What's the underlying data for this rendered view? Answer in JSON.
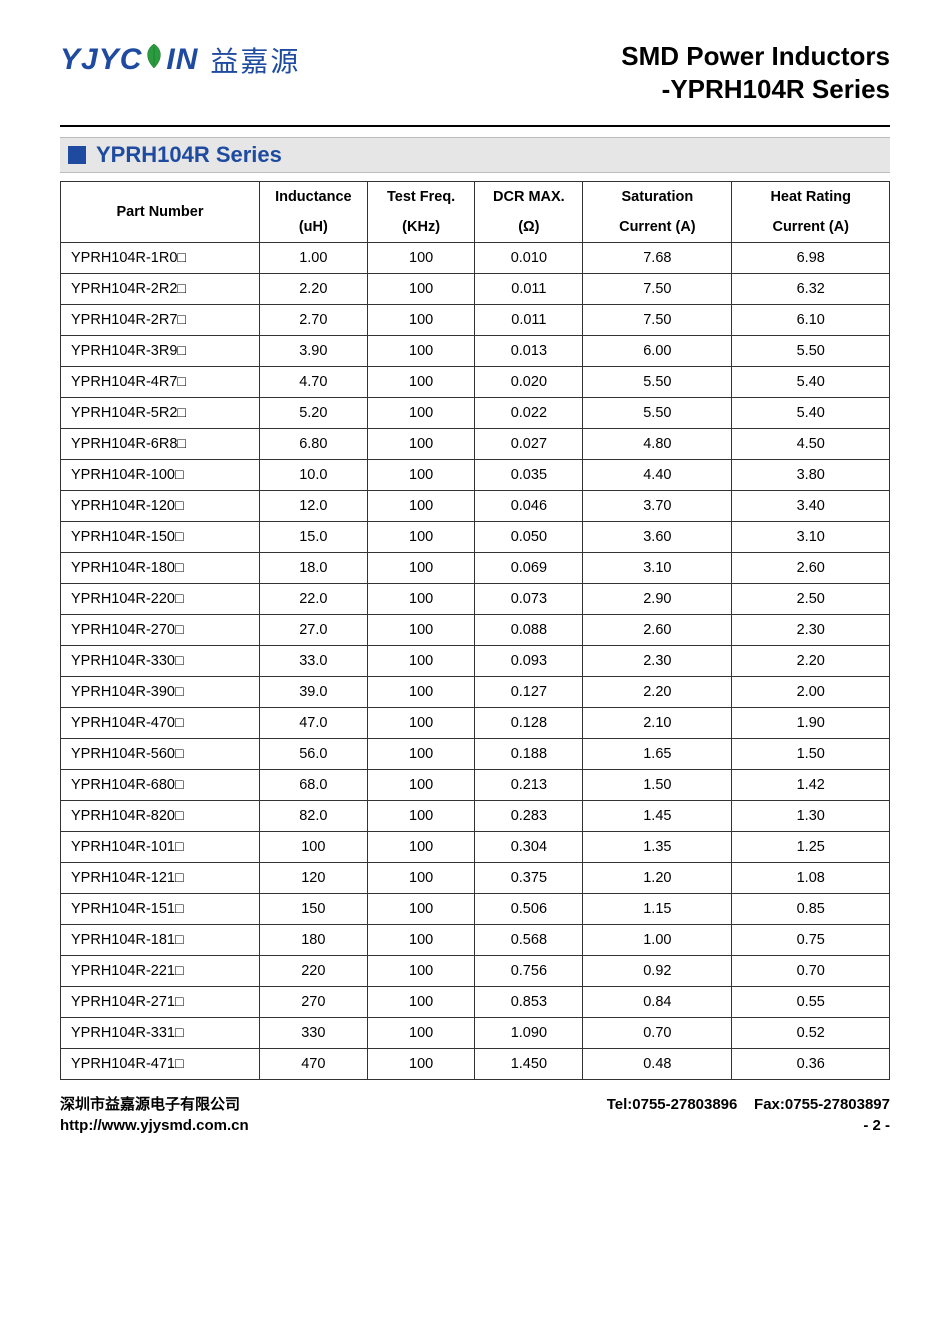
{
  "logo": {
    "latin": "YJYC",
    "latin2": "IN",
    "cn": "益嘉源"
  },
  "doc_title_line1": "SMD Power Inductors",
  "doc_title_line2": "-YPRH104R Series",
  "section_title": "YPRH104R Series",
  "table": {
    "headers_top": [
      "Part Number",
      "Inductance",
      "Test Freq.",
      "DCR MAX.",
      "Saturation",
      "Heat Rating"
    ],
    "headers_bot": [
      "",
      "(uH)",
      "(KHz)",
      "(Ω)",
      "Current (A)",
      "Current (A)"
    ],
    "col_widths": [
      "24%",
      "13%",
      "13%",
      "13%",
      "18%",
      "19%"
    ],
    "rows": [
      [
        "YPRH104R-1R0□",
        "1.00",
        "100",
        "0.010",
        "7.68",
        "6.98"
      ],
      [
        "YPRH104R-2R2□",
        "2.20",
        "100",
        "0.011",
        "7.50",
        "6.32"
      ],
      [
        "YPRH104R-2R7□",
        "2.70",
        "100",
        "0.011",
        "7.50",
        "6.10"
      ],
      [
        "YPRH104R-3R9□",
        "3.90",
        "100",
        "0.013",
        "6.00",
        "5.50"
      ],
      [
        "YPRH104R-4R7□",
        "4.70",
        "100",
        "0.020",
        "5.50",
        "5.40"
      ],
      [
        "YPRH104R-5R2□",
        "5.20",
        "100",
        "0.022",
        "5.50",
        "5.40"
      ],
      [
        "YPRH104R-6R8□",
        "6.80",
        "100",
        "0.027",
        "4.80",
        "4.50"
      ],
      [
        "YPRH104R-100□",
        "10.0",
        "100",
        "0.035",
        "4.40",
        "3.80"
      ],
      [
        "YPRH104R-120□",
        "12.0",
        "100",
        "0.046",
        "3.70",
        "3.40"
      ],
      [
        "YPRH104R-150□",
        "15.0",
        "100",
        "0.050",
        "3.60",
        "3.10"
      ],
      [
        "YPRH104R-180□",
        "18.0",
        "100",
        "0.069",
        "3.10",
        "2.60"
      ],
      [
        "YPRH104R-220□",
        "22.0",
        "100",
        "0.073",
        "2.90",
        "2.50"
      ],
      [
        "YPRH104R-270□",
        "27.0",
        "100",
        "0.088",
        "2.60",
        "2.30"
      ],
      [
        "YPRH104R-330□",
        "33.0",
        "100",
        "0.093",
        "2.30",
        "2.20"
      ],
      [
        "YPRH104R-390□",
        "39.0",
        "100",
        "0.127",
        "2.20",
        "2.00"
      ],
      [
        "YPRH104R-470□",
        "47.0",
        "100",
        "0.128",
        "2.10",
        "1.90"
      ],
      [
        "YPRH104R-560□",
        "56.0",
        "100",
        "0.188",
        "1.65",
        "1.50"
      ],
      [
        "YPRH104R-680□",
        "68.0",
        "100",
        "0.213",
        "1.50",
        "1.42"
      ],
      [
        "YPRH104R-820□",
        "82.0",
        "100",
        "0.283",
        "1.45",
        "1.30"
      ],
      [
        "YPRH104R-101□",
        "100",
        "100",
        "0.304",
        "1.35",
        "1.25"
      ],
      [
        "YPRH104R-121□",
        "120",
        "100",
        "0.375",
        "1.20",
        "1.08"
      ],
      [
        "YPRH104R-151□",
        "150",
        "100",
        "0.506",
        "1.15",
        "0.85"
      ],
      [
        "YPRH104R-181□",
        "180",
        "100",
        "0.568",
        "1.00",
        "0.75"
      ],
      [
        "YPRH104R-221□",
        "220",
        "100",
        "0.756",
        "0.92",
        "0.70"
      ],
      [
        "YPRH104R-271□",
        "270",
        "100",
        "0.853",
        "0.84",
        "0.55"
      ],
      [
        "YPRH104R-331□",
        "330",
        "100",
        "1.090",
        "0.70",
        "0.52"
      ],
      [
        "YPRH104R-471□",
        "470",
        "100",
        "1.450",
        "0.48",
        "0.36"
      ]
    ]
  },
  "footer": {
    "company_cn": "深圳市益嘉源电子有限公司",
    "tel_label": "Tel:",
    "tel": "0755-27803896",
    "fax_label": "Fax:",
    "fax": "0755-27803897",
    "url": "http://www.yjysmd.com.cn",
    "page": "- 2 -"
  },
  "colors": {
    "brand_blue": "#1e4ba0",
    "section_bg": "#e6e6e6",
    "border": "#333333"
  }
}
